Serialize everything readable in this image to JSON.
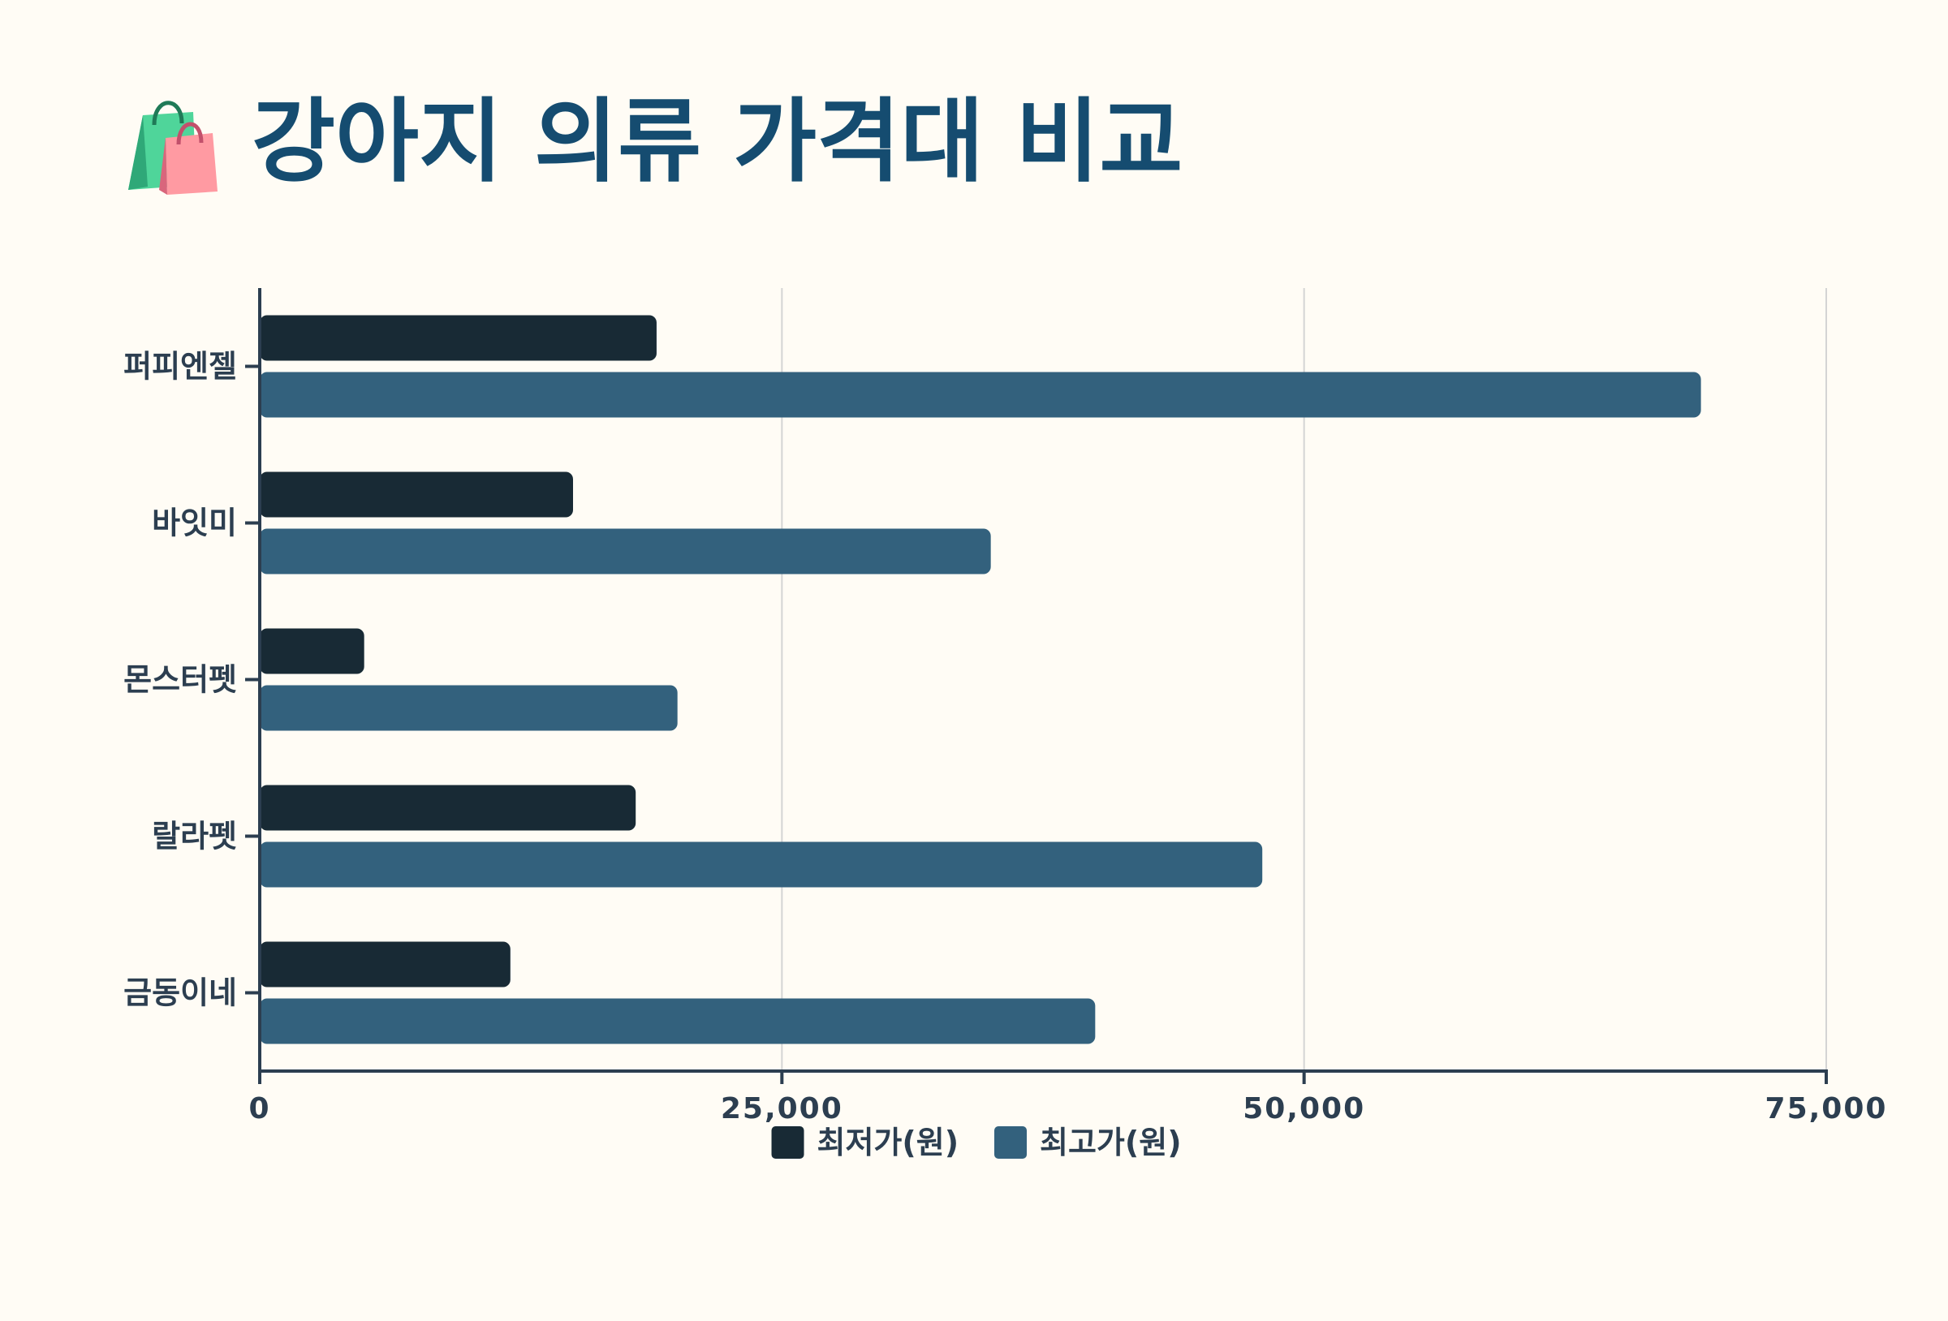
{
  "header": {
    "title": "강아지 의류 가격대 비교",
    "icon": "shopping-bags-icon"
  },
  "colors": {
    "background": "#fffcf5",
    "title": "#154c70",
    "axis": "#2c3e50",
    "grid": "#d4d4d4",
    "min_series": "#182a35",
    "max_series": "#33617d"
  },
  "chart_data": {
    "type": "bar",
    "orientation": "horizontal",
    "title": "",
    "categories": [
      "퍼피엔젤",
      "바잇미",
      "몬스터펫",
      "랄라펫",
      "금동이네"
    ],
    "series": [
      {
        "name": "최저가(원)",
        "values": [
          19000,
          15000,
          5000,
          18000,
          12000
        ]
      },
      {
        "name": "최고가(원)",
        "values": [
          69000,
          35000,
          20000,
          48000,
          40000
        ]
      }
    ],
    "xlim": [
      0,
      75000
    ],
    "x_ticks": [
      0,
      25000,
      50000,
      75000
    ],
    "x_tick_labels": [
      "0",
      "25,000",
      "50,000",
      "75,000"
    ],
    "xlabel": "",
    "ylabel": "",
    "grid": "vertical",
    "legend": "bottom-center"
  }
}
